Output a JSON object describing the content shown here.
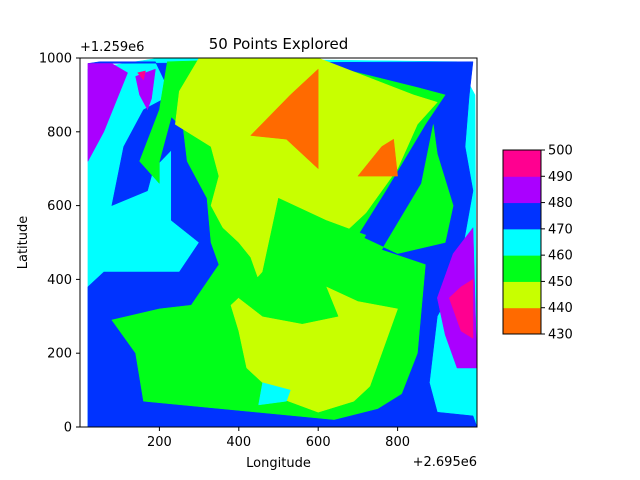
{
  "chart_data": {
    "type": "contour",
    "title": "50 Points Explored",
    "xlabel": "Longitude",
    "ylabel": "Latitude",
    "x_offset_label": "+2.695e6",
    "y_offset_label": "+1.259e6",
    "xlim": [
      0,
      1000
    ],
    "ylim": [
      0,
      1000
    ],
    "x_ticks": [
      200,
      400,
      600,
      800
    ],
    "y_ticks": [
      0,
      200,
      400,
      600,
      800,
      1000
    ],
    "x_tick_labels": [
      "200",
      "400",
      "600",
      "800"
    ],
    "y_tick_labels": [
      "0",
      "200",
      "400",
      "600",
      "800",
      "1000"
    ],
    "colorbar": {
      "levels": [
        430,
        440,
        450,
        460,
        470,
        480,
        490,
        500
      ],
      "labels": [
        "430",
        "440",
        "450",
        "460",
        "470",
        "480",
        "490",
        "500"
      ],
      "colors": [
        "#ff6a00",
        "#c8ff00",
        "#00ff19",
        "#00ffff",
        "#0033ff",
        "#aa00ff",
        "#ff0090"
      ]
    },
    "regions": [
      {
        "level": "460-470",
        "color": "#00ffff",
        "points": [
          [
            20,
            970
          ],
          [
            200,
            1000
          ],
          [
            950,
            990
          ],
          [
            995,
            900
          ],
          [
            1000,
            0
          ],
          [
            20,
            0
          ]
        ]
      },
      {
        "level": "470-480",
        "color": "#0033ff",
        "points": [
          [
            20,
            985
          ],
          [
            990,
            990
          ],
          [
            980,
            895
          ],
          [
            970,
            760
          ],
          [
            990,
            640
          ],
          [
            950,
            400
          ],
          [
            900,
            300
          ],
          [
            880,
            120
          ],
          [
            900,
            40
          ],
          [
            990,
            30
          ],
          [
            1000,
            0
          ],
          [
            20,
            0
          ],
          [
            20,
            380
          ],
          [
            60,
            420
          ],
          [
            120,
            420
          ],
          [
            250,
            420
          ],
          [
            300,
            500
          ],
          [
            230,
            560
          ],
          [
            230,
            750
          ],
          [
            185,
            700
          ],
          [
            170,
            640
          ],
          [
            80,
            600
          ],
          [
            110,
            760
          ],
          [
            160,
            860
          ],
          [
            230,
            900
          ],
          [
            190,
            990
          ],
          [
            50,
            990
          ]
        ]
      },
      {
        "level": "450-460",
        "color": "#00ff19",
        "points": [
          [
            220,
            990
          ],
          [
            550,
            1000
          ],
          [
            850,
            920
          ],
          [
            920,
            900
          ],
          [
            870,
            820
          ],
          [
            770,
            640
          ],
          [
            700,
            520
          ],
          [
            800,
            470
          ],
          [
            920,
            500
          ],
          [
            940,
            600
          ],
          [
            900,
            740
          ],
          [
            890,
            820
          ],
          [
            860,
            660
          ],
          [
            760,
            480
          ],
          [
            870,
            440
          ],
          [
            850,
            200
          ],
          [
            810,
            90
          ],
          [
            750,
            50
          ],
          [
            640,
            20
          ],
          [
            160,
            70
          ],
          [
            140,
            200
          ],
          [
            80,
            290
          ],
          [
            200,
            320
          ],
          [
            280,
            330
          ],
          [
            350,
            440
          ],
          [
            330,
            500
          ],
          [
            320,
            620
          ],
          [
            270,
            720
          ],
          [
            260,
            810
          ],
          [
            230,
            840
          ],
          [
            200,
            720
          ],
          [
            200,
            660
          ],
          [
            150,
            720
          ],
          [
            200,
            860
          ]
        ]
      },
      {
        "level": "440-450",
        "color": "#c8ff00",
        "points": [
          [
            300,
            1000
          ],
          [
            600,
            1000
          ],
          [
            840,
            900
          ],
          [
            900,
            880
          ],
          [
            850,
            820
          ],
          [
            800,
            700
          ],
          [
            720,
            580
          ],
          [
            620,
            480
          ],
          [
            620,
            380
          ],
          [
            700,
            340
          ],
          [
            800,
            320
          ],
          [
            730,
            110
          ],
          [
            690,
            70
          ],
          [
            600,
            40
          ],
          [
            500,
            80
          ],
          [
            420,
            160
          ],
          [
            400,
            260
          ],
          [
            380,
            330
          ],
          [
            450,
            400
          ],
          [
            430,
            460
          ],
          [
            400,
            500
          ],
          [
            360,
            540
          ],
          [
            330,
            600
          ],
          [
            350,
            680
          ],
          [
            330,
            760
          ],
          [
            300,
            780
          ],
          [
            240,
            820
          ],
          [
            250,
            910
          ]
        ]
      },
      {
        "level": "450-460 patch",
        "color": "#00ff19",
        "points": [
          [
            500,
            620
          ],
          [
            620,
            560
          ],
          [
            720,
            520
          ],
          [
            680,
            440
          ],
          [
            620,
            380
          ],
          [
            650,
            300
          ],
          [
            560,
            280
          ],
          [
            460,
            300
          ],
          [
            400,
            350
          ],
          [
            460,
            420
          ],
          [
            480,
            520
          ]
        ]
      },
      {
        "level": "460-470 patch",
        "color": "#00ffff",
        "points": [
          [
            460,
            120
          ],
          [
            530,
            100
          ],
          [
            520,
            70
          ],
          [
            450,
            60
          ]
        ]
      },
      {
        "level": "430-440 top",
        "color": "#ff6a00",
        "points": [
          [
            430,
            790
          ],
          [
            530,
            900
          ],
          [
            600,
            970
          ],
          [
            600,
            700
          ],
          [
            520,
            780
          ]
        ]
      },
      {
        "level": "430-440 right",
        "color": "#ff6a00",
        "points": [
          [
            700,
            680
          ],
          [
            800,
            680
          ],
          [
            790,
            780
          ],
          [
            760,
            760
          ]
        ]
      },
      {
        "level": "480-490 left",
        "color": "#aa00ff",
        "points": [
          [
            20,
            985
          ],
          [
            80,
            985
          ],
          [
            120,
            960
          ],
          [
            60,
            800
          ],
          [
            20,
            720
          ]
        ]
      },
      {
        "level": "480-490 top",
        "color": "#aa00ff",
        "points": [
          [
            140,
            950
          ],
          [
            190,
            970
          ],
          [
            180,
            890
          ],
          [
            170,
            860
          ],
          [
            150,
            900
          ]
        ]
      },
      {
        "level": "480-490 right",
        "color": "#aa00ff",
        "points": [
          [
            900,
            350
          ],
          [
            940,
            470
          ],
          [
            990,
            540
          ],
          [
            1000,
            160
          ],
          [
            950,
            160
          ],
          [
            920,
            250
          ]
        ]
      },
      {
        "level": "490-500 right",
        "color": "#ff0090",
        "points": [
          [
            930,
            350
          ],
          [
            960,
            380
          ],
          [
            990,
            400
          ],
          [
            990,
            240
          ],
          [
            960,
            260
          ]
        ]
      },
      {
        "level": "490-500 top",
        "color": "#ff0090",
        "points": [
          [
            145,
            960
          ],
          [
            165,
            965
          ],
          [
            160,
            940
          ]
        ]
      }
    ]
  }
}
